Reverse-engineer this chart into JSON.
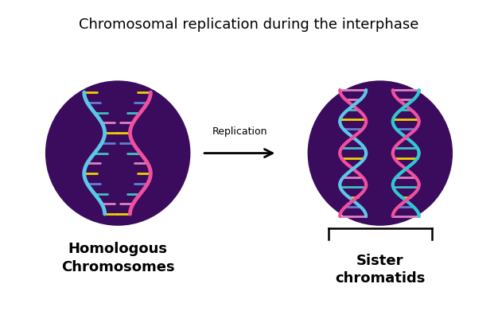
{
  "title": "Chromosomal replication during the interphase",
  "title_fontsize": 13,
  "title_fontweight": "normal",
  "bg_color": "#ffffff",
  "circle_color": "#3b0b5e",
  "arrow_label": "Replication",
  "arrow_label_fontsize": 9,
  "left_label_line1": "Homologous",
  "left_label_line2": "Chromosomes",
  "right_label_line1": "Sister",
  "right_label_line2": "chromatids",
  "label_fontsize": 13,
  "label_fontweight": "bold",
  "strand_blue": "#5bc8e8",
  "strand_pink": "#f050a0",
  "strand_teal": "#30c8d0",
  "rung_yellow": "#f0d000",
  "rung_pink": "#e080c0",
  "rung_blue": "#6080d0",
  "rung_teal": "#40c0c0"
}
